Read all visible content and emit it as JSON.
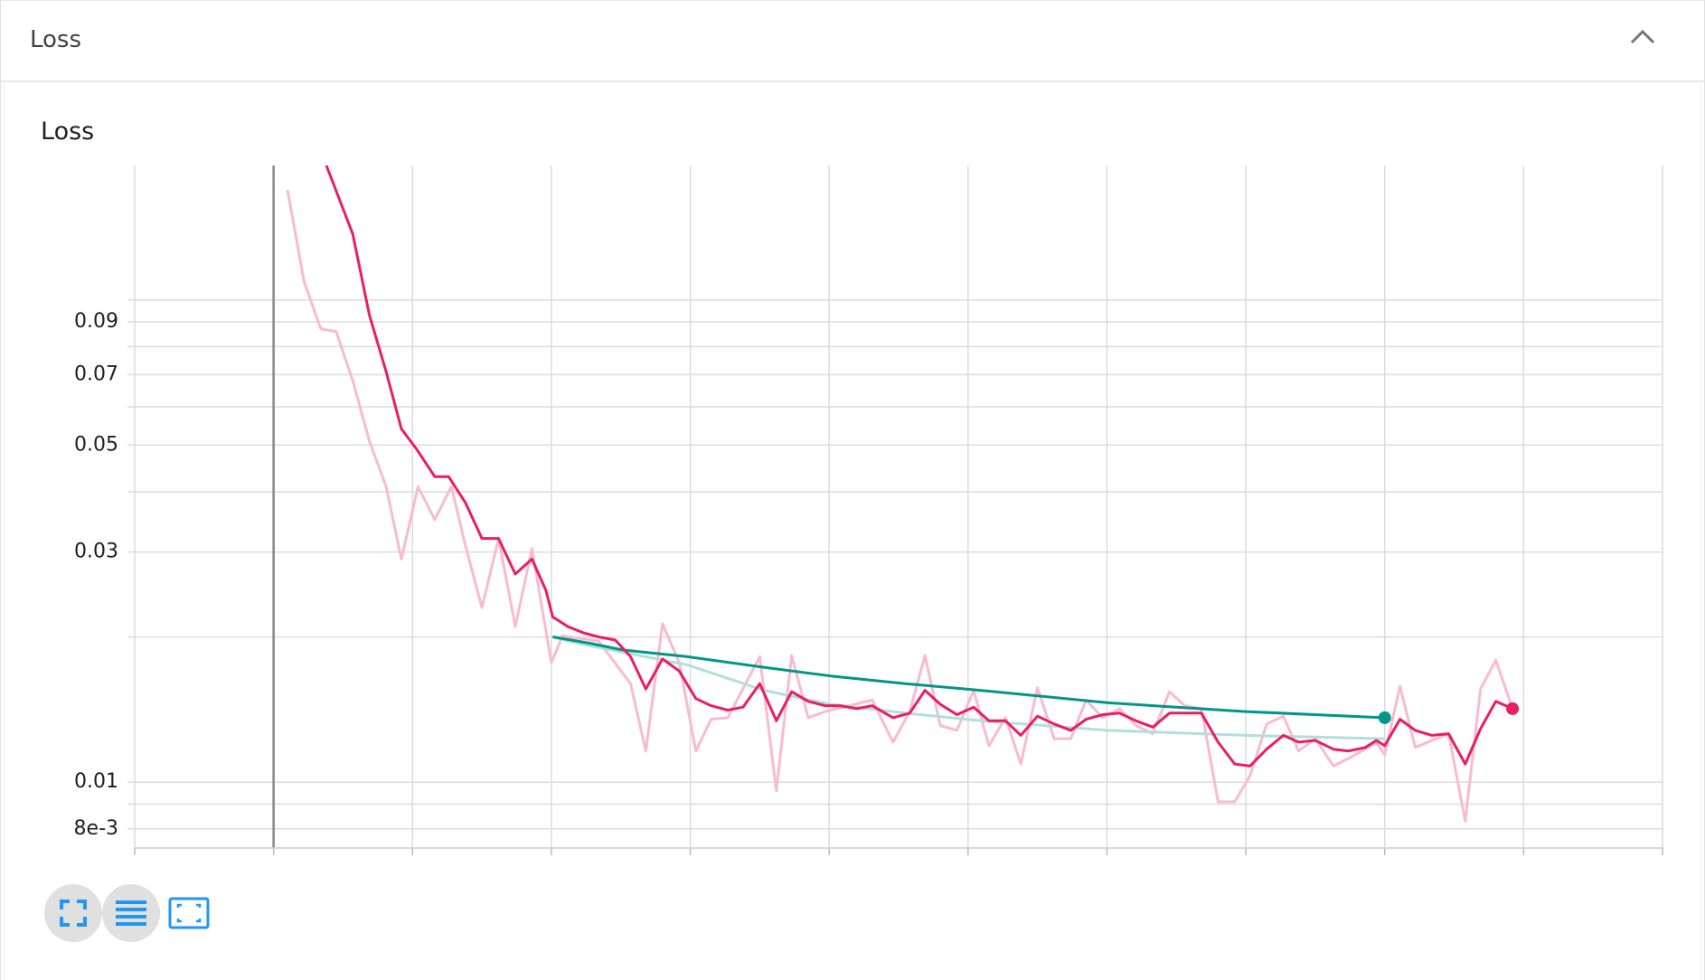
{
  "header": {
    "title": "Loss"
  },
  "chart_data": {
    "type": "line",
    "title": "Loss",
    "yscale": "log",
    "ylim": [
      0.0073,
      0.19
    ],
    "yticks": [
      0.09,
      0.07,
      0.05,
      0.03,
      0.01,
      {
        "value": 0.008,
        "label": "8e-3"
      }
    ],
    "minor_yticks": [
      0.1,
      0.08,
      0.06,
      0.04,
      0.02,
      0.009
    ],
    "xlim": [
      -1,
      10
    ],
    "xticks": [
      -1,
      0,
      1,
      2,
      3,
      4,
      5,
      6,
      7,
      8,
      9,
      10
    ],
    "grid": true,
    "series": [
      {
        "color": "#f8bbd0",
        "x": [
          0.1,
          0.22,
          0.34,
          0.45,
          0.57,
          0.69,
          0.81,
          0.92,
          1.04,
          1.16,
          1.28,
          1.38,
          1.5,
          1.62,
          1.74,
          1.86,
          2.0,
          2.08,
          2.34,
          2.57,
          2.68,
          2.8,
          2.92,
          3.04,
          3.15,
          3.27,
          3.5,
          3.62,
          3.73,
          3.85,
          3.97,
          4.31,
          4.46,
          4.58,
          4.69,
          4.8,
          4.92,
          5.04,
          5.15,
          5.27,
          5.38,
          5.5,
          5.62,
          5.74,
          5.85,
          5.97,
          6.09,
          6.21,
          6.33,
          6.45,
          6.56,
          6.68,
          6.8,
          6.92,
          7.03,
          7.15,
          7.27,
          7.38,
          7.5,
          7.63,
          7.74,
          7.86,
          7.94,
          8.0,
          8.11,
          8.22,
          8.34,
          8.46,
          8.58,
          8.69,
          8.8,
          8.92
        ],
        "values": [
          0.169,
          0.109,
          0.087,
          0.086,
          0.068,
          0.051,
          0.041,
          0.029,
          0.041,
          0.035,
          0.041,
          0.031,
          0.023,
          0.032,
          0.021,
          0.0305,
          0.0177,
          0.0201,
          0.0196,
          0.016,
          0.0116,
          0.0213,
          0.0177,
          0.0116,
          0.0135,
          0.0136,
          0.0182,
          0.0096,
          0.0183,
          0.0136,
          0.014,
          0.0148,
          0.0121,
          0.014,
          0.0183,
          0.0131,
          0.0128,
          0.0155,
          0.0119,
          0.0136,
          0.0109,
          0.0157,
          0.0123,
          0.0123,
          0.0148,
          0.0136,
          0.0142,
          0.0131,
          0.0126,
          0.0154,
          0.0144,
          0.0142,
          0.0091,
          0.0091,
          0.0103,
          0.0132,
          0.0137,
          0.0116,
          0.0123,
          0.0108,
          0.0112,
          0.0117,
          0.0121,
          0.0114,
          0.0158,
          0.0118,
          0.0122,
          0.0126,
          0.0083,
          0.0156,
          0.0179,
          0.0142
        ]
      },
      {
        "color": "#b2dfdb",
        "x": [
          2.01,
          2.19,
          2.51,
          2.98,
          3.53,
          4.01,
          4.55,
          5.09,
          6.01,
          7.0,
          8.0
        ],
        "values": [
          0.02,
          0.0194,
          0.0186,
          0.0175,
          0.0155,
          0.0145,
          0.0139,
          0.0134,
          0.0128,
          0.0125,
          0.0123
        ]
      },
      {
        "color": "#009688",
        "end_marker": true,
        "x": [
          2.01,
          2.28,
          2.51,
          2.98,
          3.53,
          4.01,
          4.55,
          5.09,
          6.01,
          7.0,
          8.0
        ],
        "values": [
          0.02,
          0.0194,
          0.0188,
          0.0182,
          0.0173,
          0.0166,
          0.016,
          0.0155,
          0.0146,
          0.014,
          0.0136
        ]
      },
      {
        "color": "#e91e63",
        "end_marker": true,
        "x": [
          0.38,
          0.57,
          0.69,
          0.81,
          0.92,
          1.03,
          1.16,
          1.26,
          1.38,
          1.5,
          1.62,
          1.74,
          1.86,
          1.96,
          2.01,
          2.12,
          2.23,
          2.34,
          2.46,
          2.57,
          2.68,
          2.8,
          2.92,
          3.04,
          3.15,
          3.27,
          3.38,
          3.5,
          3.62,
          3.73,
          3.85,
          3.97,
          4.08,
          4.2,
          4.31,
          4.46,
          4.58,
          4.69,
          4.8,
          4.92,
          5.04,
          5.15,
          5.27,
          5.38,
          5.5,
          5.62,
          5.74,
          5.85,
          5.97,
          6.09,
          6.21,
          6.33,
          6.45,
          6.56,
          6.68,
          6.8,
          6.92,
          7.03,
          7.15,
          7.27,
          7.38,
          7.5,
          7.63,
          7.74,
          7.86,
          7.94,
          8.0,
          8.11,
          8.22,
          8.34,
          8.46,
          8.58,
          8.69,
          8.8,
          8.92
        ],
        "values": [
          0.19,
          0.137,
          0.093,
          0.071,
          0.054,
          0.049,
          0.043,
          0.043,
          0.038,
          0.032,
          0.032,
          0.027,
          0.029,
          0.025,
          0.022,
          0.021,
          0.0204,
          0.02,
          0.0197,
          0.0182,
          0.0156,
          0.018,
          0.017,
          0.0149,
          0.0144,
          0.0141,
          0.0143,
          0.016,
          0.0134,
          0.0154,
          0.0147,
          0.0144,
          0.0144,
          0.0142,
          0.0144,
          0.0136,
          0.0139,
          0.0155,
          0.0145,
          0.0138,
          0.0143,
          0.0134,
          0.0134,
          0.0125,
          0.0137,
          0.0132,
          0.0128,
          0.0135,
          0.0138,
          0.0139,
          0.0134,
          0.013,
          0.0139,
          0.0139,
          0.0139,
          0.0121,
          0.0109,
          0.0108,
          0.0117,
          0.0125,
          0.0121,
          0.0122,
          0.0117,
          0.0116,
          0.0118,
          0.0122,
          0.0119,
          0.0135,
          0.0128,
          0.0125,
          0.0126,
          0.0109,
          0.0129,
          0.0147,
          0.0142
        ]
      }
    ]
  }
}
